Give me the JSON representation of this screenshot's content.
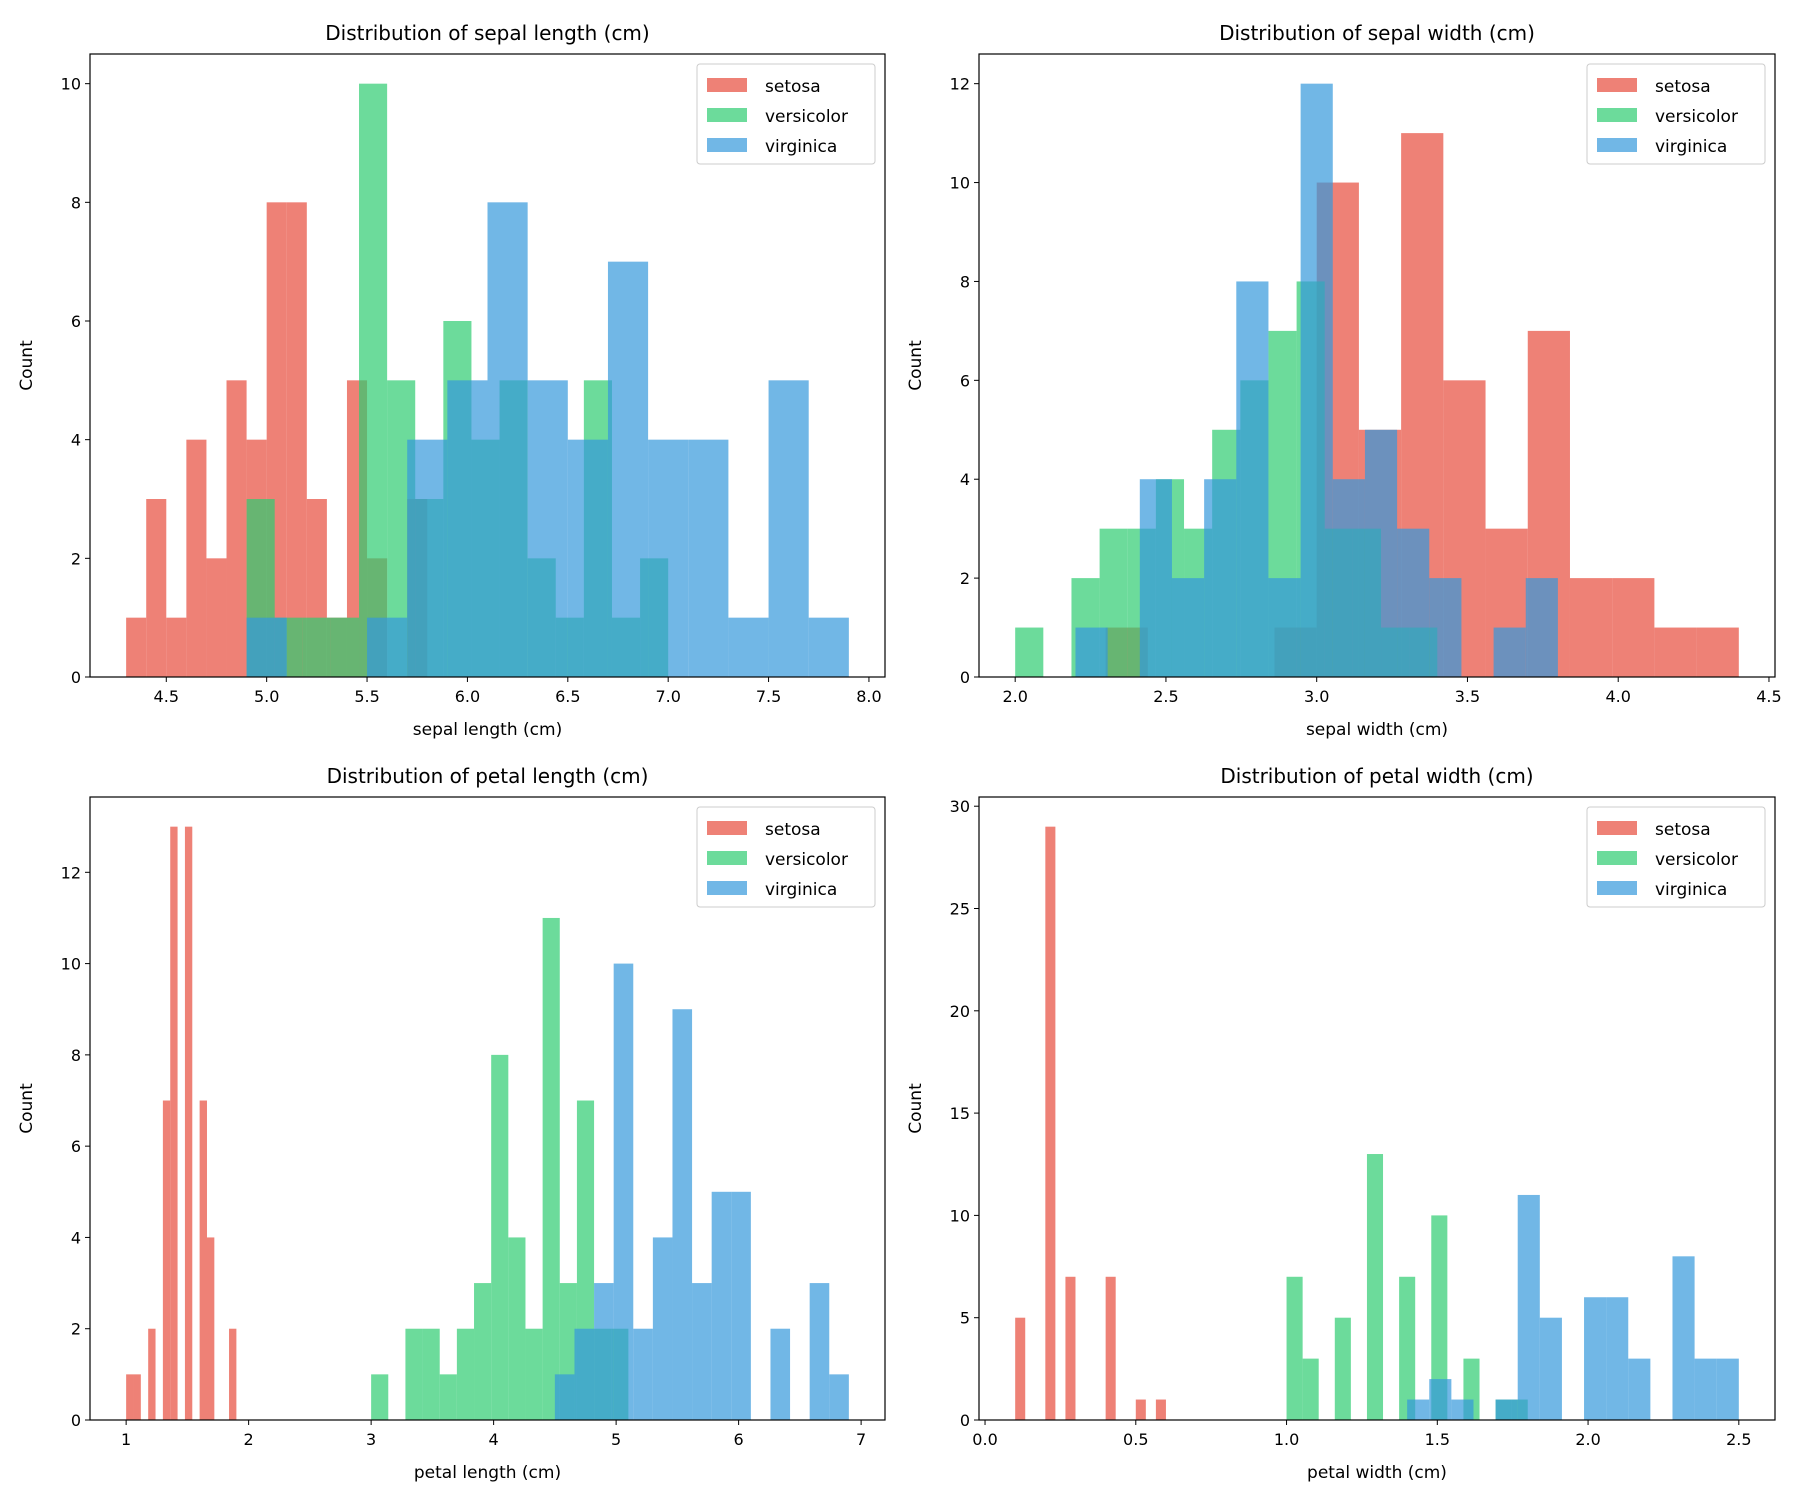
{
  "colors": {
    "setosa": "#e74c3c",
    "versicolor": "#2ecc71",
    "virginica": "#3498db"
  },
  "bar_opacity": 0.7,
  "chart_data": [
    {
      "type": "bar",
      "title": "Distribution of sepal length (cm)",
      "xlabel": "sepal length (cm)",
      "ylabel": "Count",
      "xlim": [
        4.12,
        8.08
      ],
      "ylim": [
        0,
        10.5
      ],
      "xticks": [
        "4.5",
        "5.0",
        "5.5",
        "6.0",
        "6.5",
        "7.0",
        "7.5",
        "8.0"
      ],
      "yticks": [
        "0",
        "2",
        "4",
        "6",
        "8",
        "10"
      ],
      "legend": "top-right",
      "series": [
        {
          "name": "setosa",
          "range": [
            4.3,
            5.8
          ],
          "counts": [
            1,
            3,
            1,
            4,
            2,
            5,
            4,
            8,
            8,
            3,
            1,
            5,
            2,
            0,
            3
          ]
        },
        {
          "name": "versicolor",
          "range": [
            4.9,
            7.0
          ],
          "counts": [
            3,
            1,
            1,
            1,
            10,
            5,
            3,
            6,
            4,
            5,
            2,
            1,
            5,
            1,
            2
          ]
        },
        {
          "name": "virginica",
          "range": [
            4.9,
            7.9
          ],
          "counts": [
            1,
            0,
            0,
            1,
            4,
            5,
            8,
            5,
            4,
            7,
            4,
            4,
            1,
            5,
            1
          ]
        }
      ]
    },
    {
      "type": "bar",
      "title": "Distribution of sepal width (cm)",
      "xlabel": "sepal width (cm)",
      "ylabel": "Count",
      "xlim": [
        1.88,
        4.52
      ],
      "ylim": [
        0,
        12.6
      ],
      "xticks": [
        "2.0",
        "2.5",
        "3.0",
        "3.5",
        "4.0",
        "4.5"
      ],
      "yticks": [
        "0",
        "2",
        "4",
        "6",
        "8",
        "10",
        "12"
      ],
      "legend": "top-right",
      "series": [
        {
          "name": "setosa",
          "range": [
            2.3,
            4.4
          ],
          "counts": [
            1,
            0,
            0,
            0,
            1,
            10,
            5,
            11,
            6,
            3,
            7,
            2,
            2,
            1,
            1
          ]
        },
        {
          "name": "versicolor",
          "range": [
            2.0,
            3.4
          ],
          "counts": [
            1,
            0,
            2,
            3,
            3,
            4,
            3,
            5,
            6,
            7,
            8,
            3,
            3,
            1,
            1
          ]
        },
        {
          "name": "virginica",
          "range": [
            2.2,
            3.8
          ],
          "counts": [
            1,
            0,
            4,
            2,
            4,
            8,
            2,
            12,
            4,
            5,
            3,
            2,
            0,
            1,
            2
          ]
        }
      ]
    },
    {
      "type": "bar",
      "title": "Distribution of petal length (cm)",
      "xlabel": "petal length (cm)",
      "ylabel": "Count",
      "xlim": [
        0.705,
        7.195
      ],
      "ylim": [
        0,
        13.65
      ],
      "xticks": [
        "1",
        "2",
        "3",
        "4",
        "5",
        "6",
        "7"
      ],
      "yticks": [
        "0",
        "2",
        "4",
        "6",
        "8",
        "10",
        "12"
      ],
      "legend": "top-right",
      "series": [
        {
          "name": "setosa",
          "range": [
            1.0,
            1.9
          ],
          "counts": [
            1,
            1,
            0,
            2,
            0,
            7,
            13,
            0,
            13,
            0,
            7,
            4,
            0,
            0,
            2
          ]
        },
        {
          "name": "versicolor",
          "range": [
            3.0,
            5.1
          ],
          "counts": [
            1,
            0,
            2,
            2,
            1,
            2,
            3,
            8,
            4,
            2,
            11,
            3,
            7,
            2,
            2
          ]
        },
        {
          "name": "virginica",
          "range": [
            4.5,
            6.9
          ],
          "counts": [
            1,
            2,
            3,
            10,
            2,
            4,
            9,
            3,
            5,
            5,
            0,
            2,
            0,
            3,
            1
          ]
        }
      ]
    },
    {
      "type": "bar",
      "title": "Distribution of petal width (cm)",
      "xlabel": "petal width (cm)",
      "ylabel": "Count",
      "xlim": [
        -0.02,
        2.62
      ],
      "ylim": [
        0,
        30.45
      ],
      "xticks": [
        "0.0",
        "0.5",
        "1.0",
        "1.5",
        "2.0",
        "2.5"
      ],
      "yticks": [
        "0",
        "5",
        "10",
        "15",
        "20",
        "25",
        "30"
      ],
      "legend": "top-right",
      "series": [
        {
          "name": "setosa",
          "range": [
            0.1,
            0.6
          ],
          "counts": [
            5,
            0,
            0,
            29,
            0,
            7,
            0,
            0,
            0,
            7,
            0,
            0,
            1,
            0,
            1
          ]
        },
        {
          "name": "versicolor",
          "range": [
            1.0,
            1.8
          ],
          "counts": [
            7,
            3,
            0,
            5,
            0,
            13,
            0,
            7,
            0,
            10,
            0,
            3,
            0,
            1,
            1
          ]
        },
        {
          "name": "virginica",
          "range": [
            1.4,
            2.5
          ],
          "counts": [
            1,
            2,
            1,
            0,
            1,
            11,
            5,
            0,
            6,
            6,
            3,
            0,
            8,
            3,
            3
          ]
        }
      ]
    }
  ]
}
